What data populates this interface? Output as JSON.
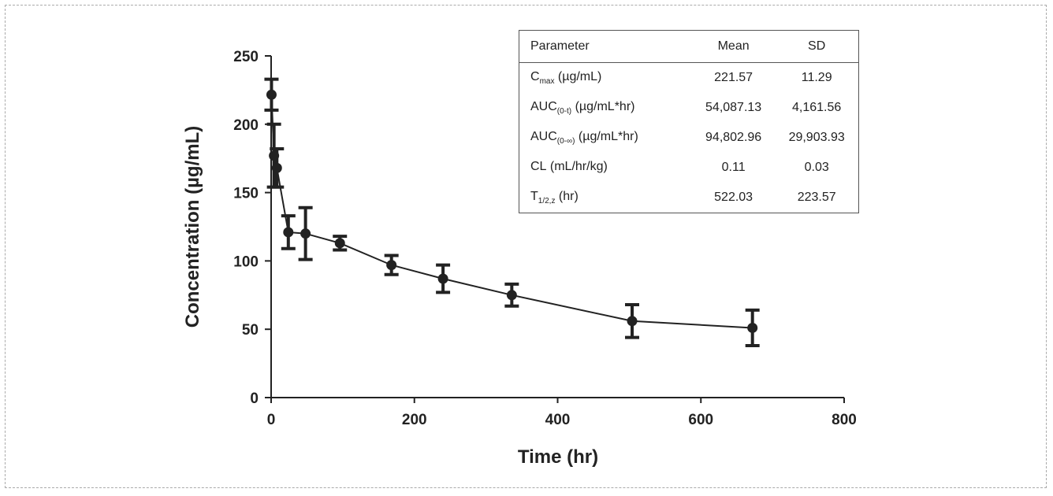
{
  "chart_data": {
    "type": "line",
    "xlabel": "Time (hr)",
    "ylabel": "Concentration (µg/mL)",
    "xlim": [
      0,
      800
    ],
    "ylim": [
      0,
      250
    ],
    "xticks": [
      "0",
      "200",
      "400",
      "600",
      "800"
    ],
    "yticks": [
      "0",
      "50",
      "100",
      "150",
      "200",
      "250"
    ],
    "grid": false,
    "series": [
      {
        "x": [
          0.5,
          4,
          8,
          24,
          48,
          96,
          168,
          240,
          336,
          504,
          672
        ],
        "y": [
          221.6,
          177,
          168,
          121,
          120,
          113,
          97,
          87,
          75,
          56,
          51
        ],
        "err": [
          11.3,
          23,
          14,
          12,
          19,
          5,
          7,
          10,
          8,
          12,
          13
        ]
      }
    ],
    "table": {
      "headers": [
        "Parameter",
        "Mean",
        "SD"
      ],
      "rows": [
        {
          "name": "C",
          "sub": "max",
          "unit": " (µg/mL)",
          "mean": "221.57",
          "sd": "11.29"
        },
        {
          "name": "AUC",
          "sub": "(0-t)",
          "unit": " (µg/mL*hr)",
          "mean": "54,087.13",
          "sd": "4,161.56"
        },
        {
          "name": "AUC",
          "sub": "(0-∞)",
          "unit": " (µg/mL*hr)",
          "mean": "94,802.96",
          "sd": "29,903.93"
        },
        {
          "name": "CL",
          "sub": "",
          "unit": " (mL/hr/kg)",
          "mean": "0.11",
          "sd": "0.03"
        },
        {
          "name": "T",
          "sub": "1/2,z",
          "unit": " (hr)",
          "mean": "522.03",
          "sd": "223.57"
        }
      ]
    }
  }
}
